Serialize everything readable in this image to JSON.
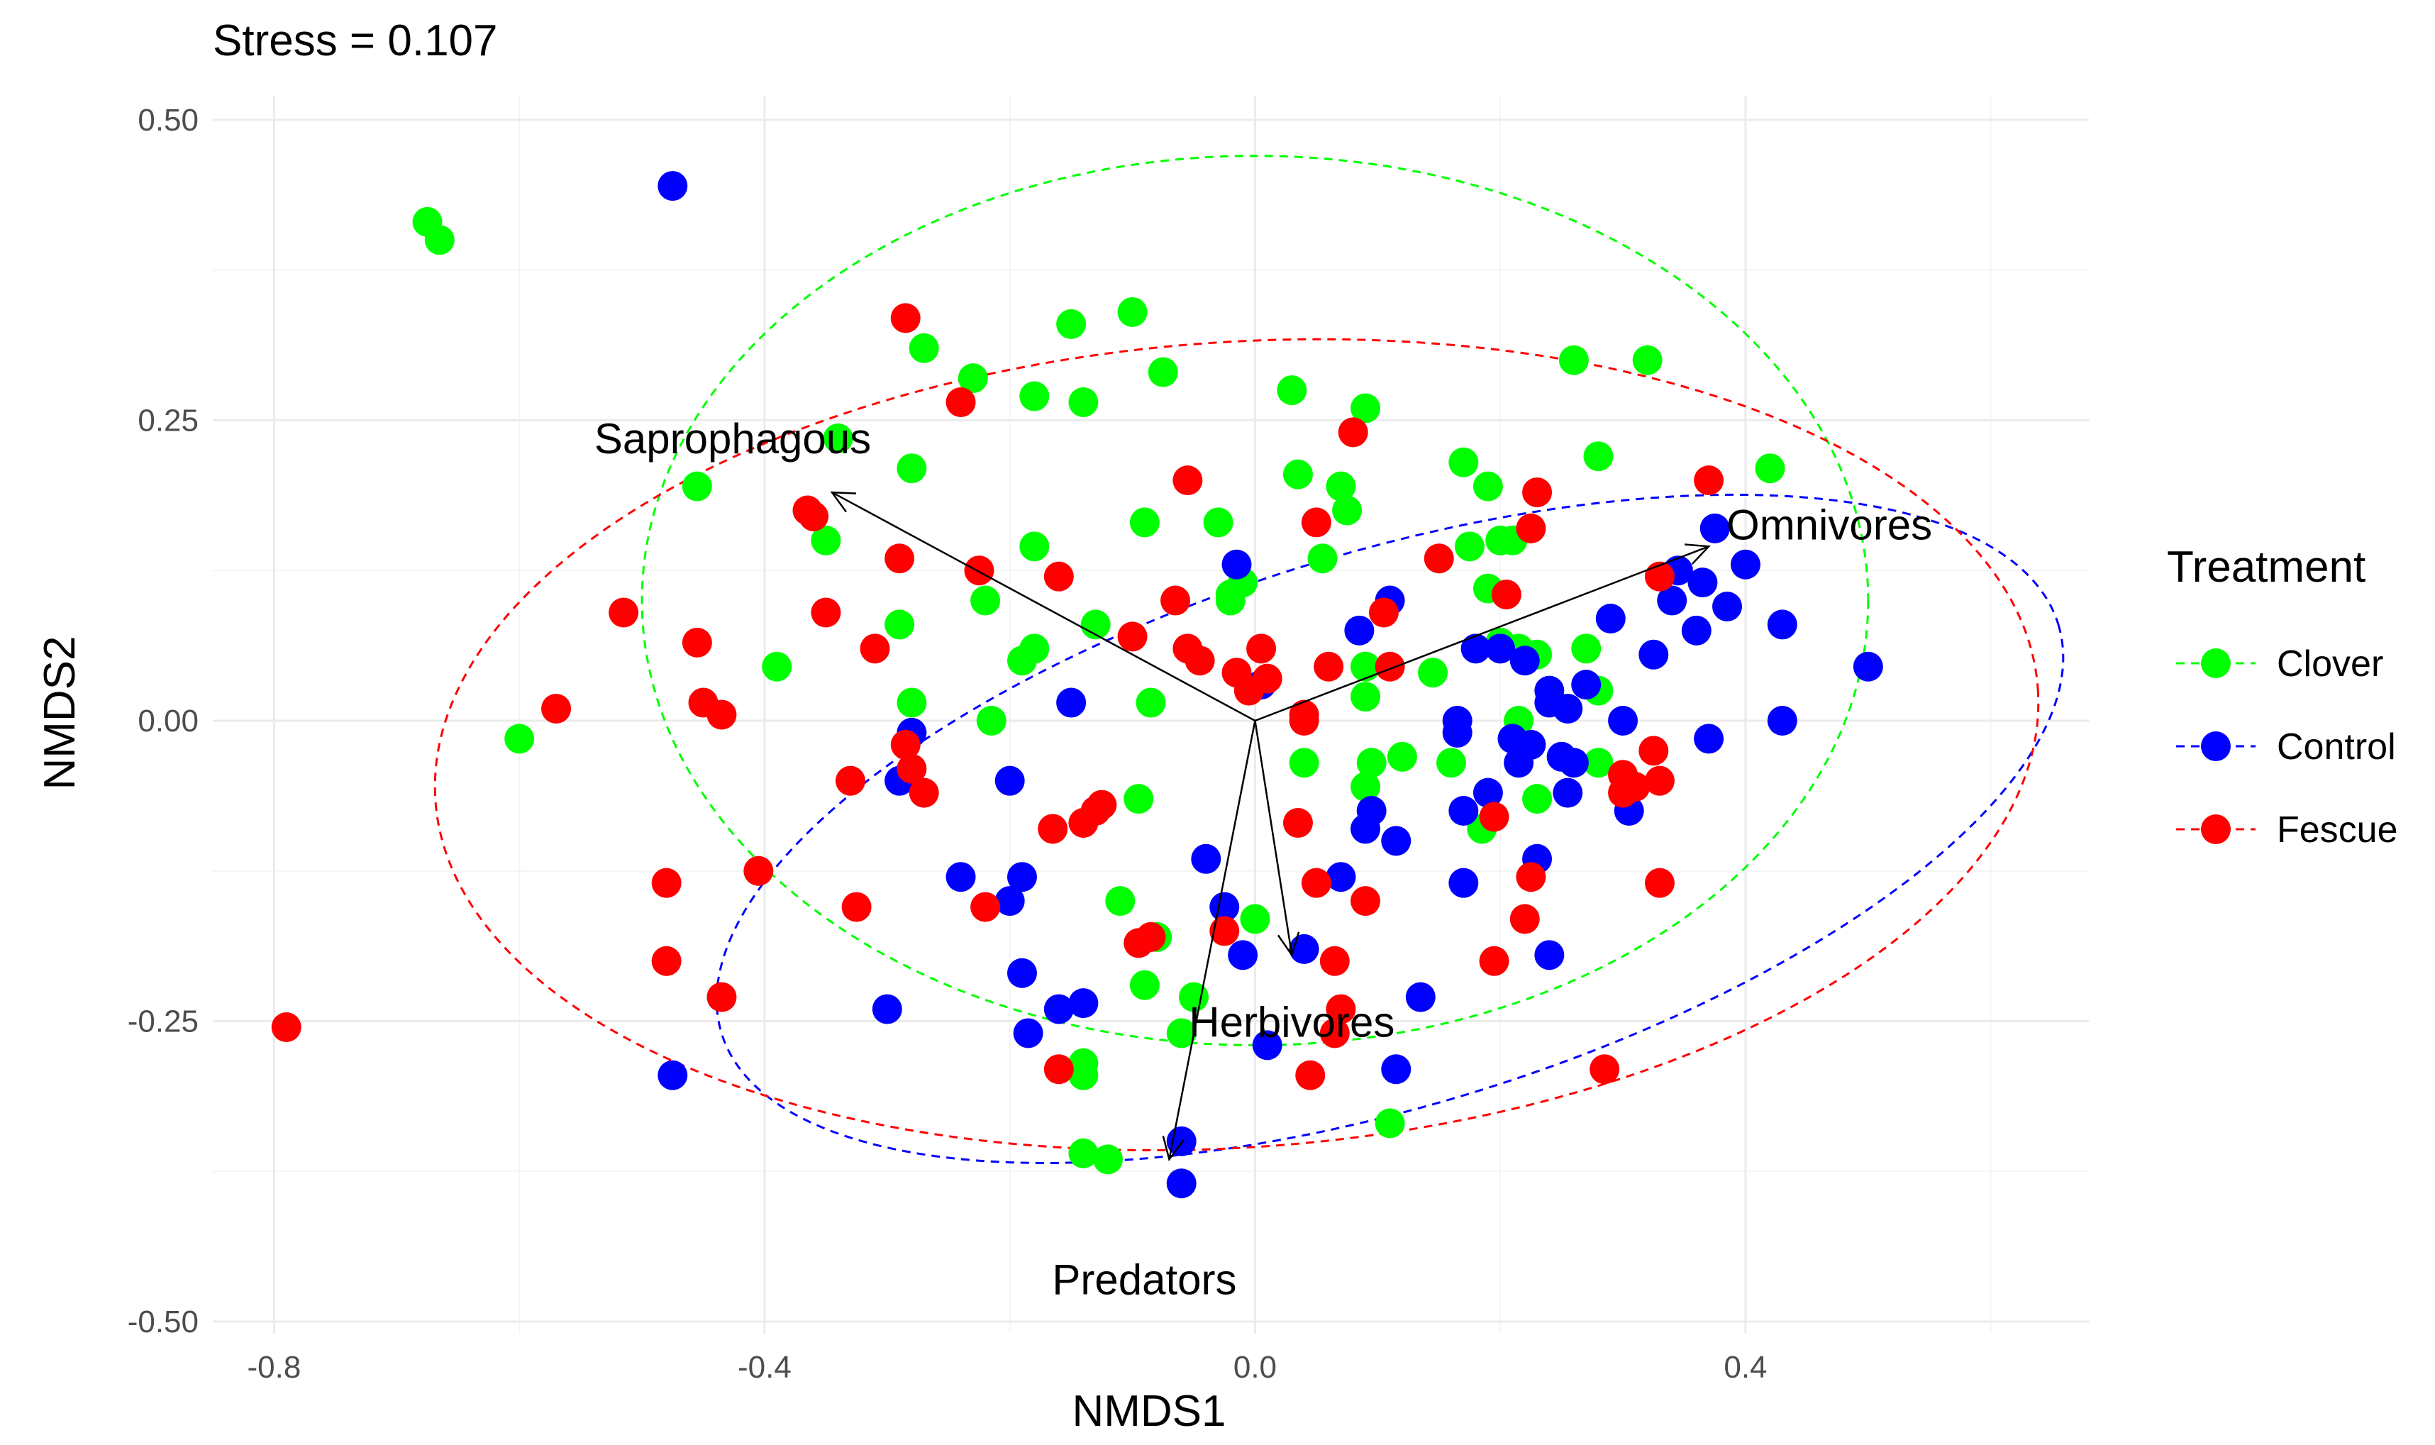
{
  "chart_data": {
    "type": "scatter",
    "title": "Stress = 0.107",
    "xlabel": "NMDS1",
    "ylabel": "NMDS2",
    "xlim": [
      -0.85,
      0.68
    ],
    "ylim": [
      -0.51,
      0.52
    ],
    "x_ticks": [
      -0.8,
      -0.4,
      0.0,
      0.4
    ],
    "x_tick_labels": [
      "-0.8",
      "-0.4",
      "0.0",
      "0.4"
    ],
    "y_ticks": [
      0.5,
      0.25,
      0.0,
      -0.25,
      -0.5
    ],
    "y_tick_labels": [
      "0.50",
      "0.25",
      "0.00",
      "-0.25",
      "-0.50"
    ],
    "grid": true,
    "legend": {
      "title": "Treatment",
      "position": "right",
      "entries": [
        {
          "label": "Clover",
          "color": "#00ff00"
        },
        {
          "label": "Control",
          "color": "#0000ff"
        },
        {
          "label": "Fescue",
          "color": "#ff0000"
        }
      ]
    },
    "series": [
      {
        "name": "Clover",
        "color": "#00ff00",
        "points": [
          [
            -0.675,
            0.415
          ],
          [
            -0.665,
            0.4
          ],
          [
            -0.6,
            -0.015
          ],
          [
            -0.455,
            0.195
          ],
          [
            -0.39,
            0.045
          ],
          [
            -0.34,
            0.235
          ],
          [
            -0.35,
            0.15
          ],
          [
            -0.29,
            0.08
          ],
          [
            -0.28,
            0.21
          ],
          [
            -0.28,
            0.015
          ],
          [
            -0.27,
            0.31
          ],
          [
            -0.23,
            0.285
          ],
          [
            -0.22,
            0.1
          ],
          [
            -0.215,
            0.0
          ],
          [
            -0.19,
            0.05
          ],
          [
            -0.18,
            0.06
          ],
          [
            -0.18,
            0.27
          ],
          [
            -0.18,
            0.145
          ],
          [
            -0.15,
            0.33
          ],
          [
            -0.14,
            0.265
          ],
          [
            -0.13,
            0.08
          ],
          [
            -0.11,
            -0.15
          ],
          [
            -0.1,
            0.34
          ],
          [
            -0.095,
            -0.065
          ],
          [
            -0.09,
            0.165
          ],
          [
            -0.085,
            0.015
          ],
          [
            -0.075,
            0.29
          ],
          [
            -0.09,
            -0.22
          ],
          [
            -0.08,
            -0.18
          ],
          [
            -0.06,
            -0.26
          ],
          [
            -0.03,
            0.165
          ],
          [
            -0.02,
            0.105
          ],
          [
            -0.01,
            0.115
          ],
          [
            0.03,
            0.275
          ],
          [
            0.035,
            0.205
          ],
          [
            0.04,
            -0.035
          ],
          [
            0.055,
            0.135
          ],
          [
            0.07,
            0.195
          ],
          [
            0.075,
            0.175
          ],
          [
            0.09,
            0.26
          ],
          [
            0.09,
            0.045
          ],
          [
            0.09,
            -0.055
          ],
          [
            0.095,
            -0.035
          ],
          [
            0.12,
            -0.03
          ],
          [
            0.145,
            0.04
          ],
          [
            0.16,
            -0.035
          ],
          [
            0.17,
            0.215
          ],
          [
            0.175,
            0.145
          ],
          [
            0.185,
            -0.09
          ],
          [
            0.19,
            0.11
          ],
          [
            0.19,
            0.195
          ],
          [
            0.2,
            0.065
          ],
          [
            0.21,
            0.15
          ],
          [
            0.215,
            0.06
          ],
          [
            0.23,
            0.055
          ],
          [
            0.23,
            -0.065
          ],
          [
            0.26,
            0.3
          ],
          [
            0.27,
            0.06
          ],
          [
            0.28,
            0.025
          ],
          [
            0.28,
            -0.035
          ],
          [
            0.28,
            0.22
          ],
          [
            0.32,
            0.3
          ],
          [
            0.42,
            0.21
          ],
          [
            -0.14,
            -0.285
          ],
          [
            -0.14,
            -0.295
          ],
          [
            -0.14,
            -0.36
          ],
          [
            -0.12,
            -0.365
          ],
          [
            0.0,
            -0.165
          ],
          [
            0.11,
            -0.335
          ],
          [
            0.2,
            0.15
          ],
          [
            0.09,
            0.045
          ],
          [
            -0.02,
            0.1
          ],
          [
            0.215,
            0.0
          ],
          [
            0.09,
            0.02
          ],
          [
            -0.05,
            -0.23
          ]
        ]
      },
      {
        "name": "Control",
        "color": "#0000ff",
        "points": [
          [
            -0.475,
            0.445
          ],
          [
            -0.475,
            -0.295
          ],
          [
            -0.3,
            -0.24
          ],
          [
            -0.29,
            -0.05
          ],
          [
            -0.28,
            -0.01
          ],
          [
            -0.24,
            -0.13
          ],
          [
            -0.2,
            -0.05
          ],
          [
            -0.2,
            -0.15
          ],
          [
            -0.19,
            -0.13
          ],
          [
            -0.19,
            -0.21
          ],
          [
            -0.185,
            -0.26
          ],
          [
            -0.16,
            -0.24
          ],
          [
            -0.14,
            -0.235
          ],
          [
            -0.15,
            0.015
          ],
          [
            -0.04,
            -0.115
          ],
          [
            -0.025,
            -0.155
          ],
          [
            -0.015,
            0.13
          ],
          [
            -0.01,
            -0.195
          ],
          [
            0.01,
            -0.27
          ],
          [
            0.005,
            0.03
          ],
          [
            0.04,
            -0.19
          ],
          [
            0.07,
            -0.13
          ],
          [
            0.085,
            0.075
          ],
          [
            0.095,
            -0.075
          ],
          [
            0.09,
            -0.09
          ],
          [
            0.11,
            0.1
          ],
          [
            0.115,
            -0.1
          ],
          [
            0.115,
            -0.29
          ],
          [
            0.135,
            -0.23
          ],
          [
            0.165,
            -0.01
          ],
          [
            0.165,
            0.0
          ],
          [
            0.17,
            -0.075
          ],
          [
            0.17,
            -0.135
          ],
          [
            0.18,
            0.06
          ],
          [
            0.19,
            -0.06
          ],
          [
            0.2,
            0.06
          ],
          [
            0.21,
            -0.015
          ],
          [
            0.215,
            -0.035
          ],
          [
            0.22,
            0.05
          ],
          [
            0.225,
            -0.02
          ],
          [
            0.23,
            -0.115
          ],
          [
            0.24,
            0.015
          ],
          [
            0.25,
            -0.03
          ],
          [
            0.26,
            -0.035
          ],
          [
            0.255,
            -0.06
          ],
          [
            0.255,
            0.01
          ],
          [
            0.24,
            -0.195
          ],
          [
            0.27,
            0.03
          ],
          [
            0.29,
            0.085
          ],
          [
            0.3,
            0.0
          ],
          [
            0.305,
            -0.075
          ],
          [
            0.325,
            0.055
          ],
          [
            0.34,
            0.1
          ],
          [
            0.345,
            0.125
          ],
          [
            0.36,
            0.075
          ],
          [
            0.365,
            0.115
          ],
          [
            0.37,
            -0.015
          ],
          [
            0.375,
            0.16
          ],
          [
            0.385,
            0.095
          ],
          [
            0.4,
            0.13
          ],
          [
            0.43,
            0.08
          ],
          [
            0.43,
            0.0
          ],
          [
            0.5,
            0.045
          ],
          [
            -0.06,
            -0.35
          ],
          [
            -0.06,
            -0.385
          ],
          [
            0.24,
            0.025
          ]
        ]
      },
      {
        "name": "Fescue",
        "color": "#ff0000",
        "points": [
          [
            -0.79,
            -0.255
          ],
          [
            -0.57,
            0.01
          ],
          [
            -0.515,
            0.09
          ],
          [
            -0.48,
            -0.135
          ],
          [
            -0.48,
            -0.2
          ],
          [
            -0.455,
            0.065
          ],
          [
            -0.45,
            0.015
          ],
          [
            -0.435,
            0.005
          ],
          [
            -0.435,
            -0.23
          ],
          [
            -0.405,
            -0.125
          ],
          [
            -0.365,
            0.175
          ],
          [
            -0.36,
            0.17
          ],
          [
            -0.35,
            0.09
          ],
          [
            -0.33,
            -0.05
          ],
          [
            -0.325,
            -0.155
          ],
          [
            -0.31,
            0.06
          ],
          [
            -0.285,
            0.335
          ],
          [
            -0.29,
            0.135
          ],
          [
            -0.285,
            -0.02
          ],
          [
            -0.28,
            -0.04
          ],
          [
            -0.27,
            -0.06
          ],
          [
            -0.24,
            0.265
          ],
          [
            -0.225,
            0.125
          ],
          [
            -0.22,
            -0.155
          ],
          [
            -0.165,
            -0.09
          ],
          [
            -0.16,
            0.12
          ],
          [
            -0.16,
            -0.29
          ],
          [
            -0.14,
            -0.085
          ],
          [
            -0.13,
            -0.075
          ],
          [
            -0.125,
            -0.07
          ],
          [
            -0.1,
            0.07
          ],
          [
            -0.095,
            -0.185
          ],
          [
            -0.085,
            -0.18
          ],
          [
            -0.065,
            0.1
          ],
          [
            -0.055,
            0.2
          ],
          [
            -0.055,
            0.06
          ],
          [
            -0.045,
            0.05
          ],
          [
            -0.025,
            -0.175
          ],
          [
            -0.015,
            0.04
          ],
          [
            -0.005,
            0.025
          ],
          [
            0.005,
            0.06
          ],
          [
            0.01,
            0.035
          ],
          [
            0.035,
            -0.085
          ],
          [
            0.04,
            0.005
          ],
          [
            0.045,
            -0.295
          ],
          [
            0.05,
            0.165
          ],
          [
            0.05,
            -0.135
          ],
          [
            0.06,
            0.045
          ],
          [
            0.065,
            -0.2
          ],
          [
            0.065,
            -0.26
          ],
          [
            0.07,
            -0.24
          ],
          [
            0.08,
            0.24
          ],
          [
            0.09,
            -0.15
          ],
          [
            0.105,
            0.09
          ],
          [
            0.11,
            0.045
          ],
          [
            0.15,
            0.135
          ],
          [
            0.195,
            -0.08
          ],
          [
            0.195,
            -0.2
          ],
          [
            0.205,
            0.105
          ],
          [
            0.22,
            -0.165
          ],
          [
            0.225,
            -0.13
          ],
          [
            0.23,
            0.19
          ],
          [
            0.225,
            0.16
          ],
          [
            0.3,
            -0.045
          ],
          [
            0.3,
            -0.06
          ],
          [
            0.31,
            -0.055
          ],
          [
            0.325,
            -0.025
          ],
          [
            0.33,
            -0.05
          ],
          [
            0.33,
            0.12
          ],
          [
            0.33,
            -0.135
          ],
          [
            0.37,
            0.2
          ],
          [
            0.285,
            -0.29
          ],
          [
            0.04,
            0.0
          ]
        ]
      }
    ],
    "ellipses": [
      {
        "name": "Clover",
        "color": "#00ff00",
        "cx": 0.0,
        "cy": 0.1,
        "rx": 0.5,
        "ry": 0.37
      },
      {
        "name": "Control",
        "color": "#0000ff",
        "cx": 0.11,
        "cy": -0.09,
        "rx": 0.57,
        "ry": 0.23,
        "angle_deg": 17
      },
      {
        "name": "Fescue",
        "color": "#ff0000",
        "cx": -0.015,
        "cy": -0.02,
        "rx": 0.655,
        "ry": 0.335,
        "angle_deg": 4
      }
    ],
    "vectors": [
      {
        "label": "Saprophagous",
        "x": -0.345,
        "y": 0.19
      },
      {
        "label": "Omnivores",
        "x": 0.37,
        "y": 0.145
      },
      {
        "label": "Herbivores",
        "x": 0.03,
        "y": -0.195
      },
      {
        "label": "Predators",
        "x": -0.07,
        "y": -0.365
      }
    ]
  }
}
